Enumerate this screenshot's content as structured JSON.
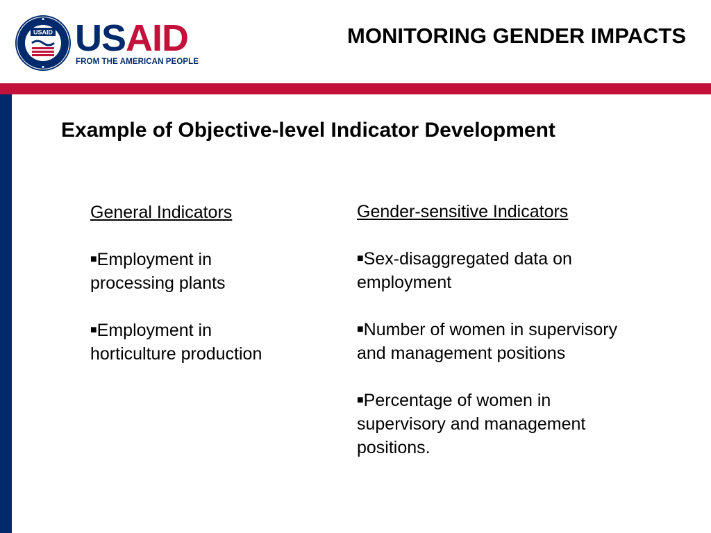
{
  "header": {
    "logo": {
      "seal_text": "UNITED STATES AGENCY INTERNATIONAL DEVELOPMENT",
      "seal_badge": "USAID",
      "wordmark_us": "US",
      "wordmark_aid": "AID",
      "tagline": "FROM THE AMERICAN PEOPLE"
    },
    "title": "MONITORING GENDER IMPACTS"
  },
  "colors": {
    "brand_blue": "#002a6c",
    "brand_red": "#c2113a"
  },
  "slide": {
    "title": "Example of Objective-level Indicator Development",
    "left_column": {
      "heading": "General Indicators",
      "bullets": [
        "Employment in processing plants",
        "Employment in horticulture production"
      ]
    },
    "right_column": {
      "heading": "Gender-sensitive Indicators",
      "bullets": [
        "Sex-disaggregated data on employment",
        "Number of women in supervisory and management positions",
        "Percentage of women in supervisory and management positions."
      ]
    },
    "bullet_icon": "square-bullet-icon"
  }
}
